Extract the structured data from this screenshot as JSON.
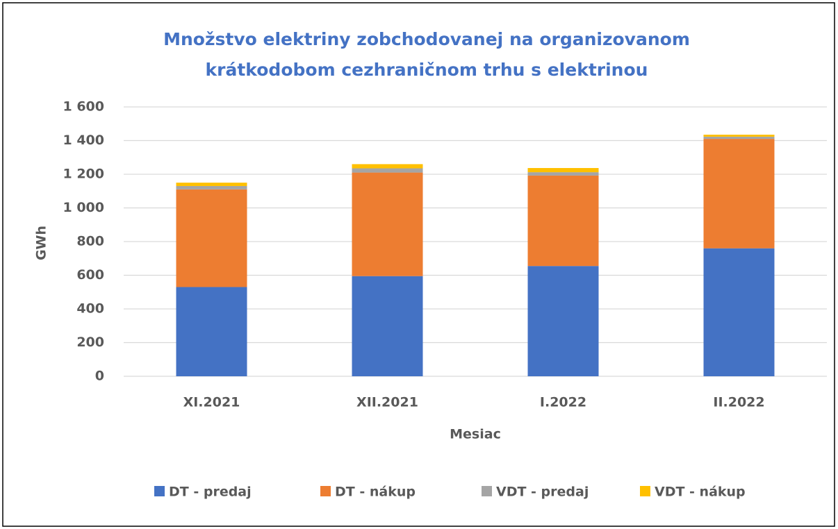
{
  "chart_data": {
    "type": "stacked_bar",
    "title": [
      "Množstvo elektriny zobchodovanej na organizovanom",
      "krátkodobom cezhraničnom trhu s elektrinou"
    ],
    "x_label": "Mesiac",
    "y_label": "GWh",
    "categories": [
      "XI.2021",
      "XII.2021",
      "I.2022",
      "II.2022"
    ],
    "series": [
      {
        "name": "DT - predaj",
        "color": "#4472c4",
        "values": [
          530,
          595,
          655,
          760
        ]
      },
      {
        "name": "DT - nákup",
        "color": "#ed7d31",
        "values": [
          580,
          615,
          537,
          650
        ]
      },
      {
        "name": "VDT - predaj",
        "color": "#a5a5a5",
        "values": [
          20,
          25,
          20,
          13
        ]
      },
      {
        "name": "VDT - nákup",
        "color": "#ffc000",
        "values": [
          20,
          25,
          25,
          12
        ]
      }
    ],
    "ylim": [
      0,
      1600
    ],
    "yticks": [
      0,
      200,
      400,
      600,
      800,
      {
        "value": 1000,
        "label": "1 000"
      },
      {
        "value": 1200,
        "label": "1 200"
      },
      {
        "value": 1400,
        "label": "1 400"
      },
      {
        "value": 1600,
        "label": "1 600"
      }
    ],
    "grid": true,
    "legend": "bottom"
  }
}
